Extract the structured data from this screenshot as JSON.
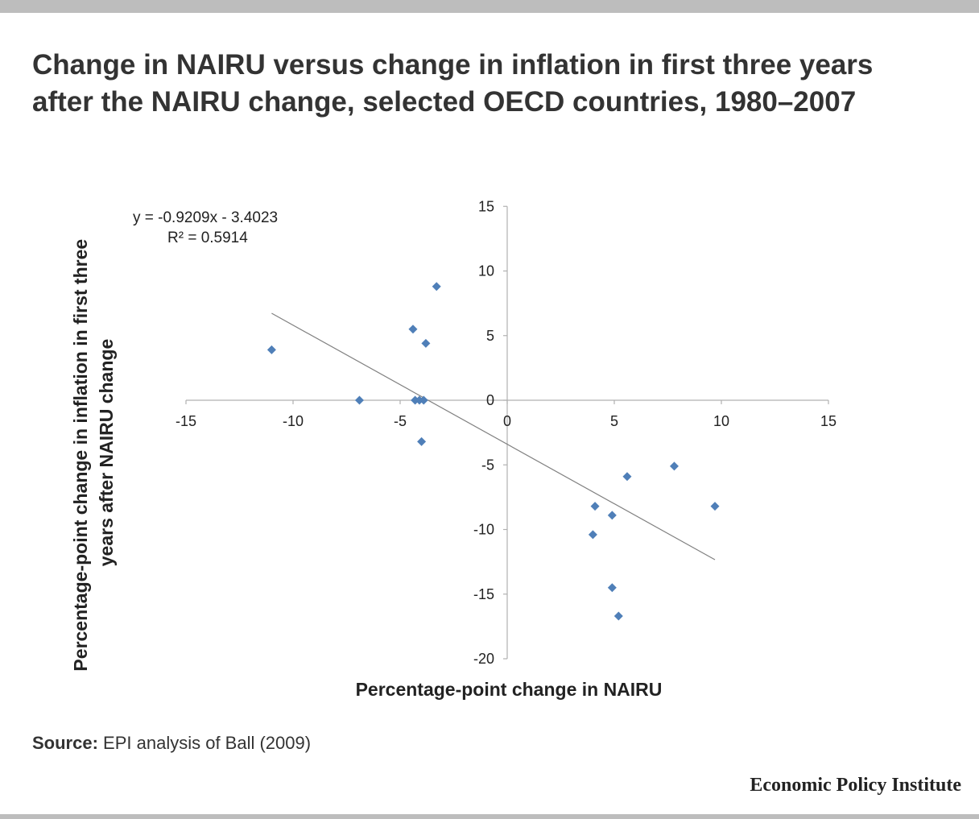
{
  "title": "Change in NAIRU versus change in inflation in first three years after the NAIRU change, selected OECD countries, 1980–2007",
  "source": {
    "label": "Source:",
    "text": "EPI analysis of Ball (2009)"
  },
  "brand": "Economic Policy Institute",
  "colors": {
    "points": "#4f7fb8",
    "axis": "#b0b0b0",
    "trendline": "#808080",
    "text": "#333333",
    "bars": "#bdbdbd"
  },
  "chart_data": {
    "type": "scatter",
    "xlabel": "Percentage-point change in NAIRU",
    "ylabel": "Percentage-point change in inflation in first three years after NAIRU change",
    "xlim": [
      -15,
      15
    ],
    "ylim": [
      -20,
      15
    ],
    "xticks": [
      -15,
      -10,
      -5,
      0,
      5,
      10,
      15
    ],
    "yticks": [
      15,
      10,
      5,
      0,
      -5,
      -10,
      -15,
      -20
    ],
    "grid": false,
    "annotations": [
      "y = -0.9209x - 3.4023",
      "R² = 0.5914"
    ],
    "trendline": {
      "slope": -0.9209,
      "intercept": -3.4023,
      "x_range": [
        -11,
        9.7
      ]
    },
    "points": [
      {
        "x": -11.0,
        "y": 3.9
      },
      {
        "x": -6.9,
        "y": 0.0
      },
      {
        "x": -4.4,
        "y": 5.5
      },
      {
        "x": -4.3,
        "y": 0.0
      },
      {
        "x": -4.1,
        "y": 0.0
      },
      {
        "x": -3.9,
        "y": 0.0
      },
      {
        "x": -3.8,
        "y": 4.4
      },
      {
        "x": -4.0,
        "y": -3.2
      },
      {
        "x": -3.3,
        "y": 8.8
      },
      {
        "x": 4.0,
        "y": -10.4
      },
      {
        "x": 4.1,
        "y": -8.2
      },
      {
        "x": 4.9,
        "y": -8.9
      },
      {
        "x": 4.9,
        "y": -14.5
      },
      {
        "x": 5.2,
        "y": -16.7
      },
      {
        "x": 5.6,
        "y": -5.9
      },
      {
        "x": 7.8,
        "y": -5.1
      },
      {
        "x": 9.7,
        "y": -8.2
      }
    ]
  }
}
